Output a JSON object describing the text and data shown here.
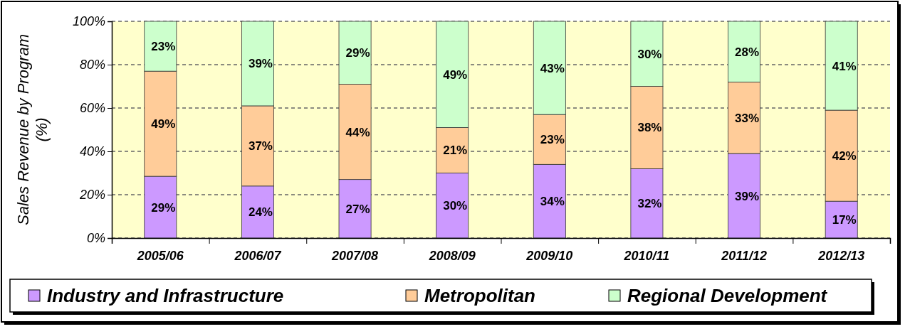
{
  "chart_data": {
    "type": "bar",
    "stacked": true,
    "ylabel": "Sales Revenue by Program (%)",
    "categories": [
      "2005/06",
      "2006/07",
      "2007/08",
      "2008/09",
      "2009/10",
      "2010/11",
      "2011/12",
      "2012/13"
    ],
    "series": [
      {
        "name": "Industry and Infrastructure",
        "color": "#cc99ff",
        "values": [
          28.5,
          24,
          27,
          30,
          34,
          32,
          39,
          17
        ],
        "value_labels": [
          "29%",
          "24%",
          "27%",
          "30%",
          "34%",
          "32%",
          "39%",
          "17%"
        ]
      },
      {
        "name": "Metropolitan",
        "color": "#ffcc99",
        "values": [
          48.5,
          37,
          44,
          21,
          23,
          38,
          33,
          42
        ],
        "value_labels": [
          "49%",
          "37%",
          "44%",
          "21%",
          "23%",
          "38%",
          "33%",
          "42%"
        ]
      },
      {
        "name": "Regional Development",
        "color": "#ccffcc",
        "values": [
          23,
          39,
          29,
          49,
          43,
          30,
          28,
          41
        ],
        "value_labels": [
          "23%",
          "39%",
          "29%",
          "49%",
          "43%",
          "30%",
          "28%",
          "41%"
        ]
      }
    ],
    "ylim": [
      0,
      100
    ],
    "yticks": [
      {
        "value": 0,
        "label": "0%"
      },
      {
        "value": 20,
        "label": "20%"
      },
      {
        "value": 40,
        "label": "40%"
      },
      {
        "value": 60,
        "label": "60%"
      },
      {
        "value": 80,
        "label": "80%"
      },
      {
        "value": 100,
        "label": "100%"
      }
    ],
    "grid": "y",
    "legend": "bottom"
  }
}
